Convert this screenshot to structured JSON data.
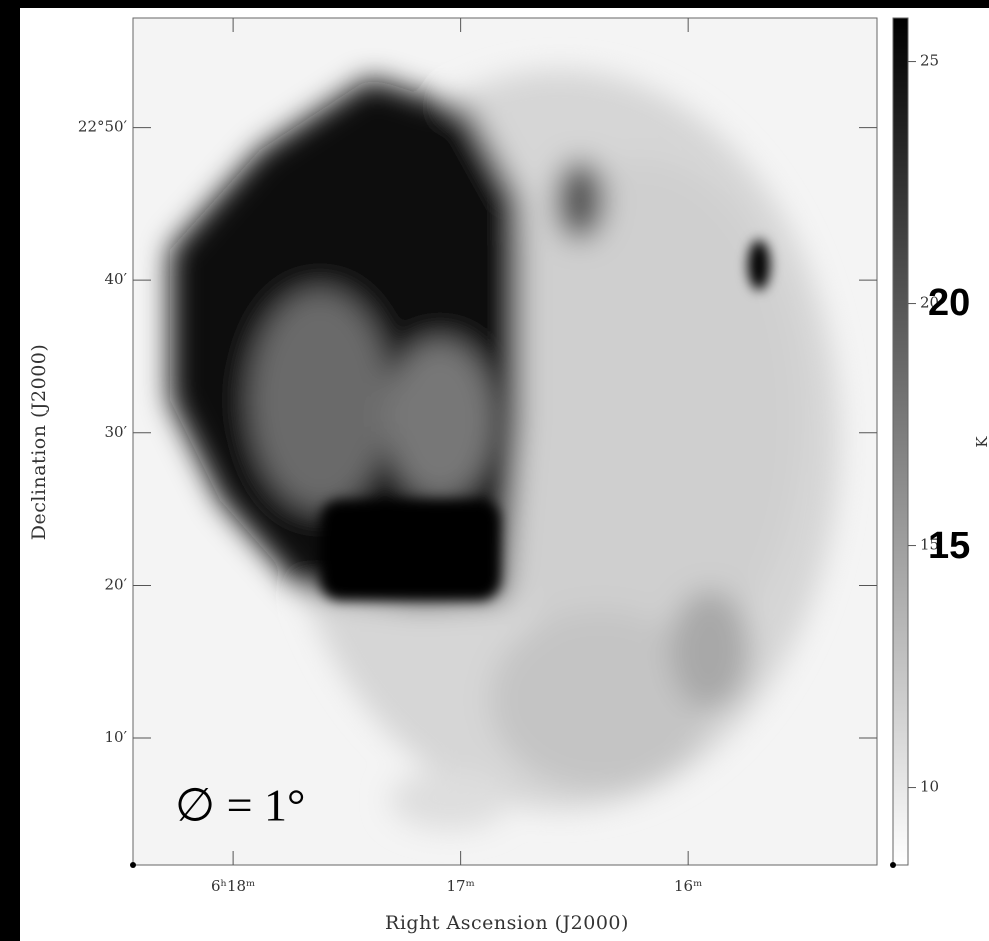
{
  "chart_data": {
    "type": "image",
    "xlabel": "Right Ascension (J2000)",
    "ylabel": "Declination (J2000)",
    "xlim": [
      18.44,
      15.17
    ],
    "xticks": [
      {
        "value": 18,
        "label": "6ʰ18ᵐ"
      },
      {
        "value": 17,
        "label": "17ᵐ"
      },
      {
        "value": 16,
        "label": "16ᵐ"
      }
    ],
    "ylim": [
      22.028,
      22.953
    ],
    "yticks": [
      {
        "value": 22.8333,
        "label": "22°50′"
      },
      {
        "value": 22.6667,
        "label": "40′"
      },
      {
        "value": 22.5,
        "label": "30′"
      },
      {
        "value": 22.3333,
        "label": "20′"
      },
      {
        "value": 22.1667,
        "label": "10′"
      }
    ],
    "colorbar_label": "K",
    "zlim": [
      8.4,
      25.9
    ],
    "zticks": [
      10,
      15,
      20,
      25
    ],
    "colormap": [
      "#ffffff",
      "#000000"
    ],
    "annotations": [
      "∅ = 1°",
      "20",
      "15"
    ]
  }
}
